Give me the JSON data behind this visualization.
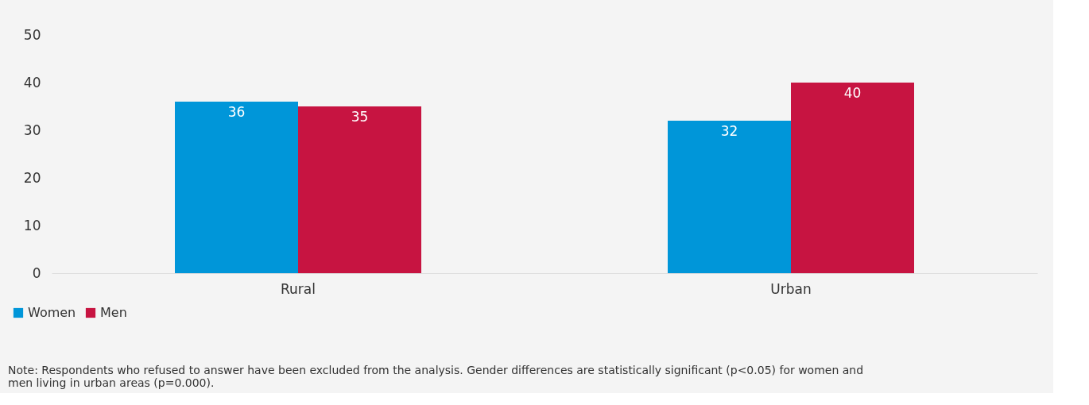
{
  "chart_data": {
    "type": "bar",
    "categories": [
      "Rural",
      "Urban"
    ],
    "series": [
      {
        "name": "Women",
        "color": "#0096d9",
        "values": [
          36,
          32
        ]
      },
      {
        "name": "Men",
        "color": "#c71441",
        "values": [
          35,
          40
        ]
      }
    ],
    "ylim": [
      0,
      50
    ],
    "yticks": [
      0,
      10,
      20,
      30,
      40,
      50
    ],
    "data_labels": true,
    "legend": "bottom left",
    "annotations": [
      "Note: Respondents who refused to answer have been excluded from the analysis. Gender differences are statistically significant (p<0.05) for women and men living in urban areas (p=0.000)."
    ]
  }
}
